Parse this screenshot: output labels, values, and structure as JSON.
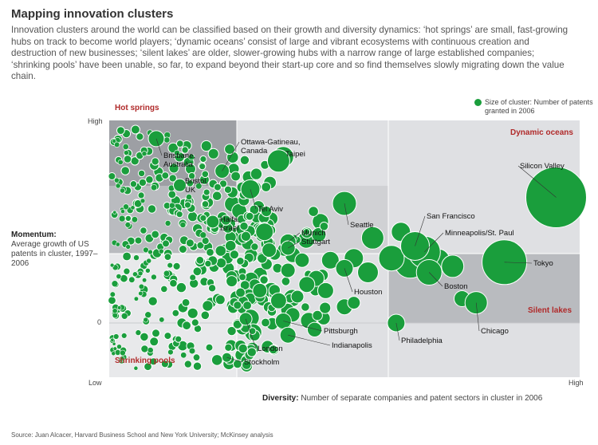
{
  "header": {
    "title": "Mapping innovation clusters",
    "intro": "Innovation clusters around the world can be classified based on their growth and diversity dynamics: ‘hot springs’ are small, fast-growing hubs on track to become world players; ‘dynamic oceans’ consist of large and vibrant ecosystems with continuous creation and destruction of new businesses; ‘silent lakes’ are older, slower-growing hubs with a narrow range of large established companies; ‘shrinking pools’ have been unable, so far, to expand beyond their start-up core and so find themselves slowly migrating down the value chain."
  },
  "legend": {
    "text": "Size of cluster: Number of patents granted in 2006",
    "color": "#1a9e3c"
  },
  "axes": {
    "y_title": "Momentum:",
    "y_desc": "Average growth of US patents in cluster, 1997–2006",
    "y_high": "High",
    "y_zero": "0",
    "x_low": "Low",
    "x_high": "High",
    "x_title": "Diversity:",
    "x_desc": "Number of separate companies and patent sectors in cluster in 2006"
  },
  "source": "Source: Juan Alcacer, Harvard Business School and New York University; McKinsey analysis",
  "chart_data": {
    "type": "scatter",
    "quadrants": [
      "Hot springs",
      "Dynamic oceans",
      "Silent lakes",
      "Shrinking pools"
    ],
    "colors": {
      "bubble": "#1a9e3c",
      "bubble_edge": "#ffffff",
      "quadrant_label": "#b02a2a",
      "dark_zone": "#9d9fa4",
      "mid_zone": "#b9bbbf",
      "light_zone": "#dfe0e3"
    },
    "labeled_points": [
      {
        "name": "Silicon Valley",
        "diversity": 0.95,
        "momentum": 0.62
      },
      {
        "name": "Tokyo",
        "diversity": 0.84,
        "momentum": 0.3
      },
      {
        "name": "San Francisco",
        "diversity": 0.65,
        "momentum": 0.38
      },
      {
        "name": "Minneapolis/St. Paul",
        "diversity": 0.67,
        "momentum": 0.35
      },
      {
        "name": "Boston",
        "diversity": 0.68,
        "momentum": 0.25
      },
      {
        "name": "Chicago",
        "diversity": 0.78,
        "momentum": 0.1
      },
      {
        "name": "Philadelphia",
        "diversity": 0.61,
        "momentum": 0.0
      },
      {
        "name": "Seattle",
        "diversity": 0.5,
        "momentum": 0.59
      },
      {
        "name": "Houston",
        "diversity": 0.5,
        "momentum": 0.27
      },
      {
        "name": "Taipei",
        "diversity": 0.36,
        "momentum": 0.8
      },
      {
        "name": "Tel Aviv",
        "diversity": 0.3,
        "momentum": 0.66
      },
      {
        "name": "Munich",
        "diversity": 0.38,
        "momentum": 0.4
      },
      {
        "name": "Stuttgart",
        "diversity": 0.38,
        "momentum": 0.37
      },
      {
        "name": "Pittsburgh",
        "diversity": 0.37,
        "momentum": 0.01
      },
      {
        "name": "Indianapolis",
        "diversity": 0.38,
        "momentum": -0.06
      },
      {
        "name": "London",
        "diversity": 0.29,
        "momentum": 0.02
      },
      {
        "name": "Stockholm",
        "diversity": 0.25,
        "momentum": -0.17
      },
      {
        "name": "Ottawa-Gatineau, Canada",
        "diversity": 0.24,
        "momentum": 0.75
      },
      {
        "name": "Bristol, UK",
        "diversity": 0.15,
        "momentum": 0.68
      },
      {
        "name": "Brisbane, Australia",
        "diversity": 0.1,
        "momentum": 0.91
      },
      {
        "name": "Haifa, Israel",
        "diversity": 0.22,
        "momentum": 0.5
      }
    ]
  }
}
